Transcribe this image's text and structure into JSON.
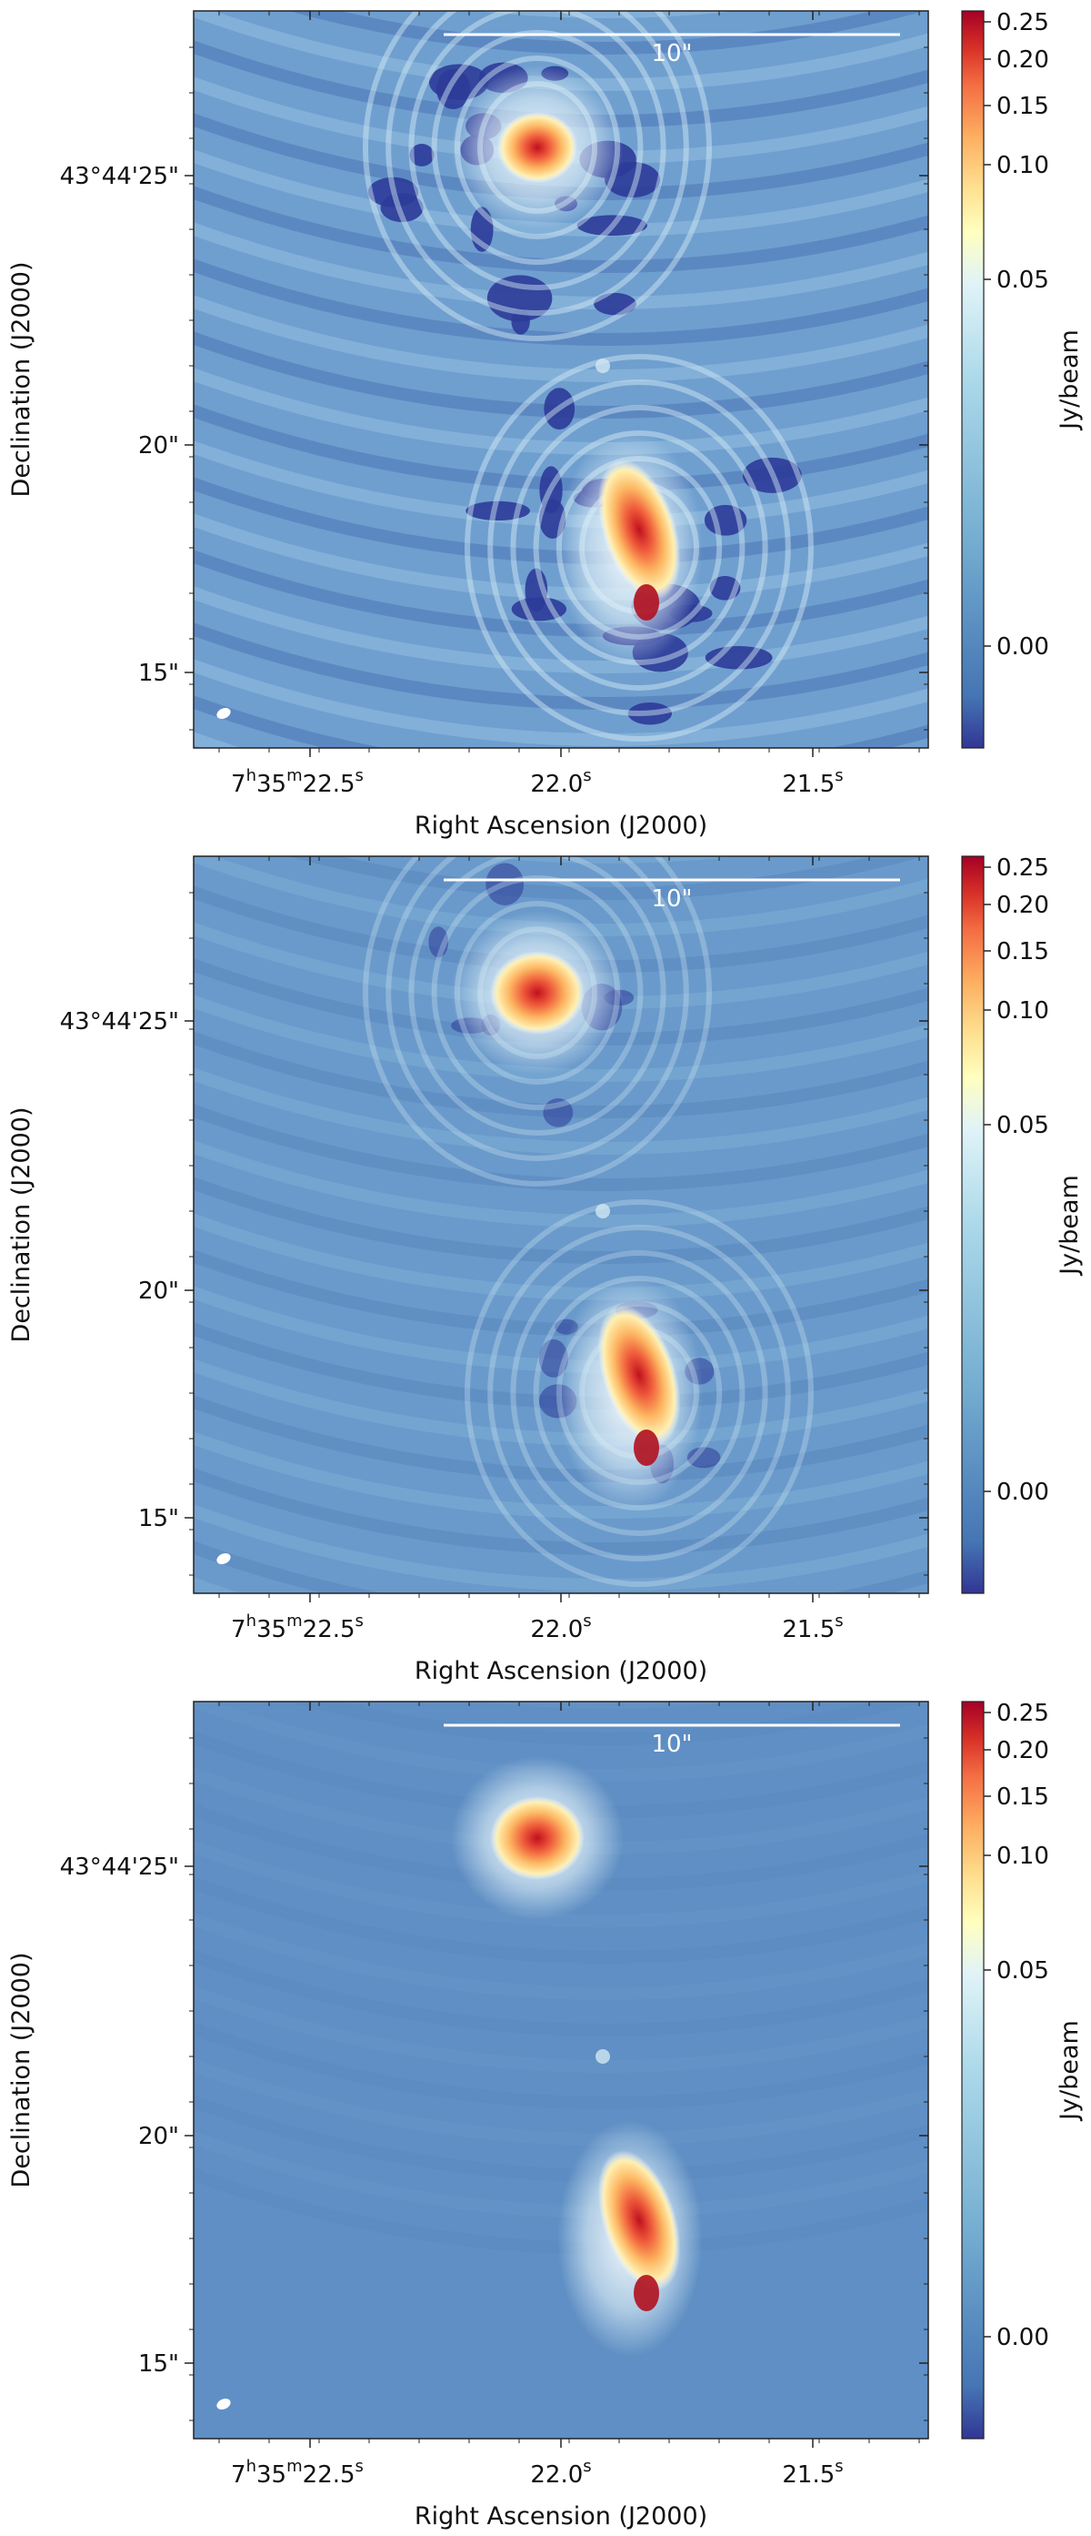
{
  "panels": [
    {
      "id": "top",
      "ra_ticks": [
        {
          "h": "7",
          "m": "35",
          "s": "22.5",
          "show_hm": true
        },
        {
          "h": "",
          "m": "",
          "s": "22.0",
          "show_hm": false
        },
        {
          "h": "",
          "m": "",
          "s": "21.5",
          "show_hm": false
        }
      ],
      "dec_ticks": [
        "43°44'25\"",
        "20\"",
        "15\""
      ],
      "xlabel": "Right Ascension (J2000)",
      "ylabel": "Declination (J2000)",
      "scalebar_label": "10\"",
      "colorbar_label": "Jy/beam",
      "colorbar_ticks": [
        "0.25",
        "0.20",
        "0.15",
        "0.10",
        "0.05",
        "0.00"
      ],
      "image_style": "noisy"
    },
    {
      "id": "middle",
      "ra_ticks": [
        {
          "h": "7",
          "m": "35",
          "s": "22.5",
          "show_hm": true
        },
        {
          "h": "",
          "m": "",
          "s": "22.0",
          "show_hm": false
        },
        {
          "h": "",
          "m": "",
          "s": "21.5",
          "show_hm": false
        }
      ],
      "dec_ticks": [
        "43°44'25\"",
        "20\"",
        "15\""
      ],
      "xlabel": "Right Ascension (J2000)",
      "ylabel": "Declination (J2000)",
      "scalebar_label": "10\"",
      "colorbar_label": "Jy/beam",
      "colorbar_ticks": [
        "0.25",
        "0.20",
        "0.15",
        "0.10",
        "0.05",
        "0.00"
      ],
      "image_style": "moderate"
    },
    {
      "id": "bottom",
      "ra_ticks": [
        {
          "h": "7",
          "m": "35",
          "s": "22.5",
          "show_hm": true
        },
        {
          "h": "",
          "m": "",
          "s": "22.0",
          "show_hm": false
        },
        {
          "h": "",
          "m": "",
          "s": "21.5",
          "show_hm": false
        }
      ],
      "dec_ticks": [
        "43°44'25\"",
        "20\"",
        "15\""
      ],
      "xlabel": "Right Ascension (J2000)",
      "ylabel": "Declination (J2000)",
      "scalebar_label": "10\"",
      "colorbar_label": "Jy/beam",
      "colorbar_ticks": [
        "0.25",
        "0.20",
        "0.15",
        "0.10",
        "0.05",
        "0.00"
      ],
      "image_style": "smooth"
    }
  ],
  "colormap": [
    "#313695",
    "#4575b4",
    "#74add1",
    "#abd9e9",
    "#e0f3f8",
    "#ffffbf",
    "#fee090",
    "#fdae61",
    "#f46d43",
    "#d73027",
    "#a50026"
  ]
}
